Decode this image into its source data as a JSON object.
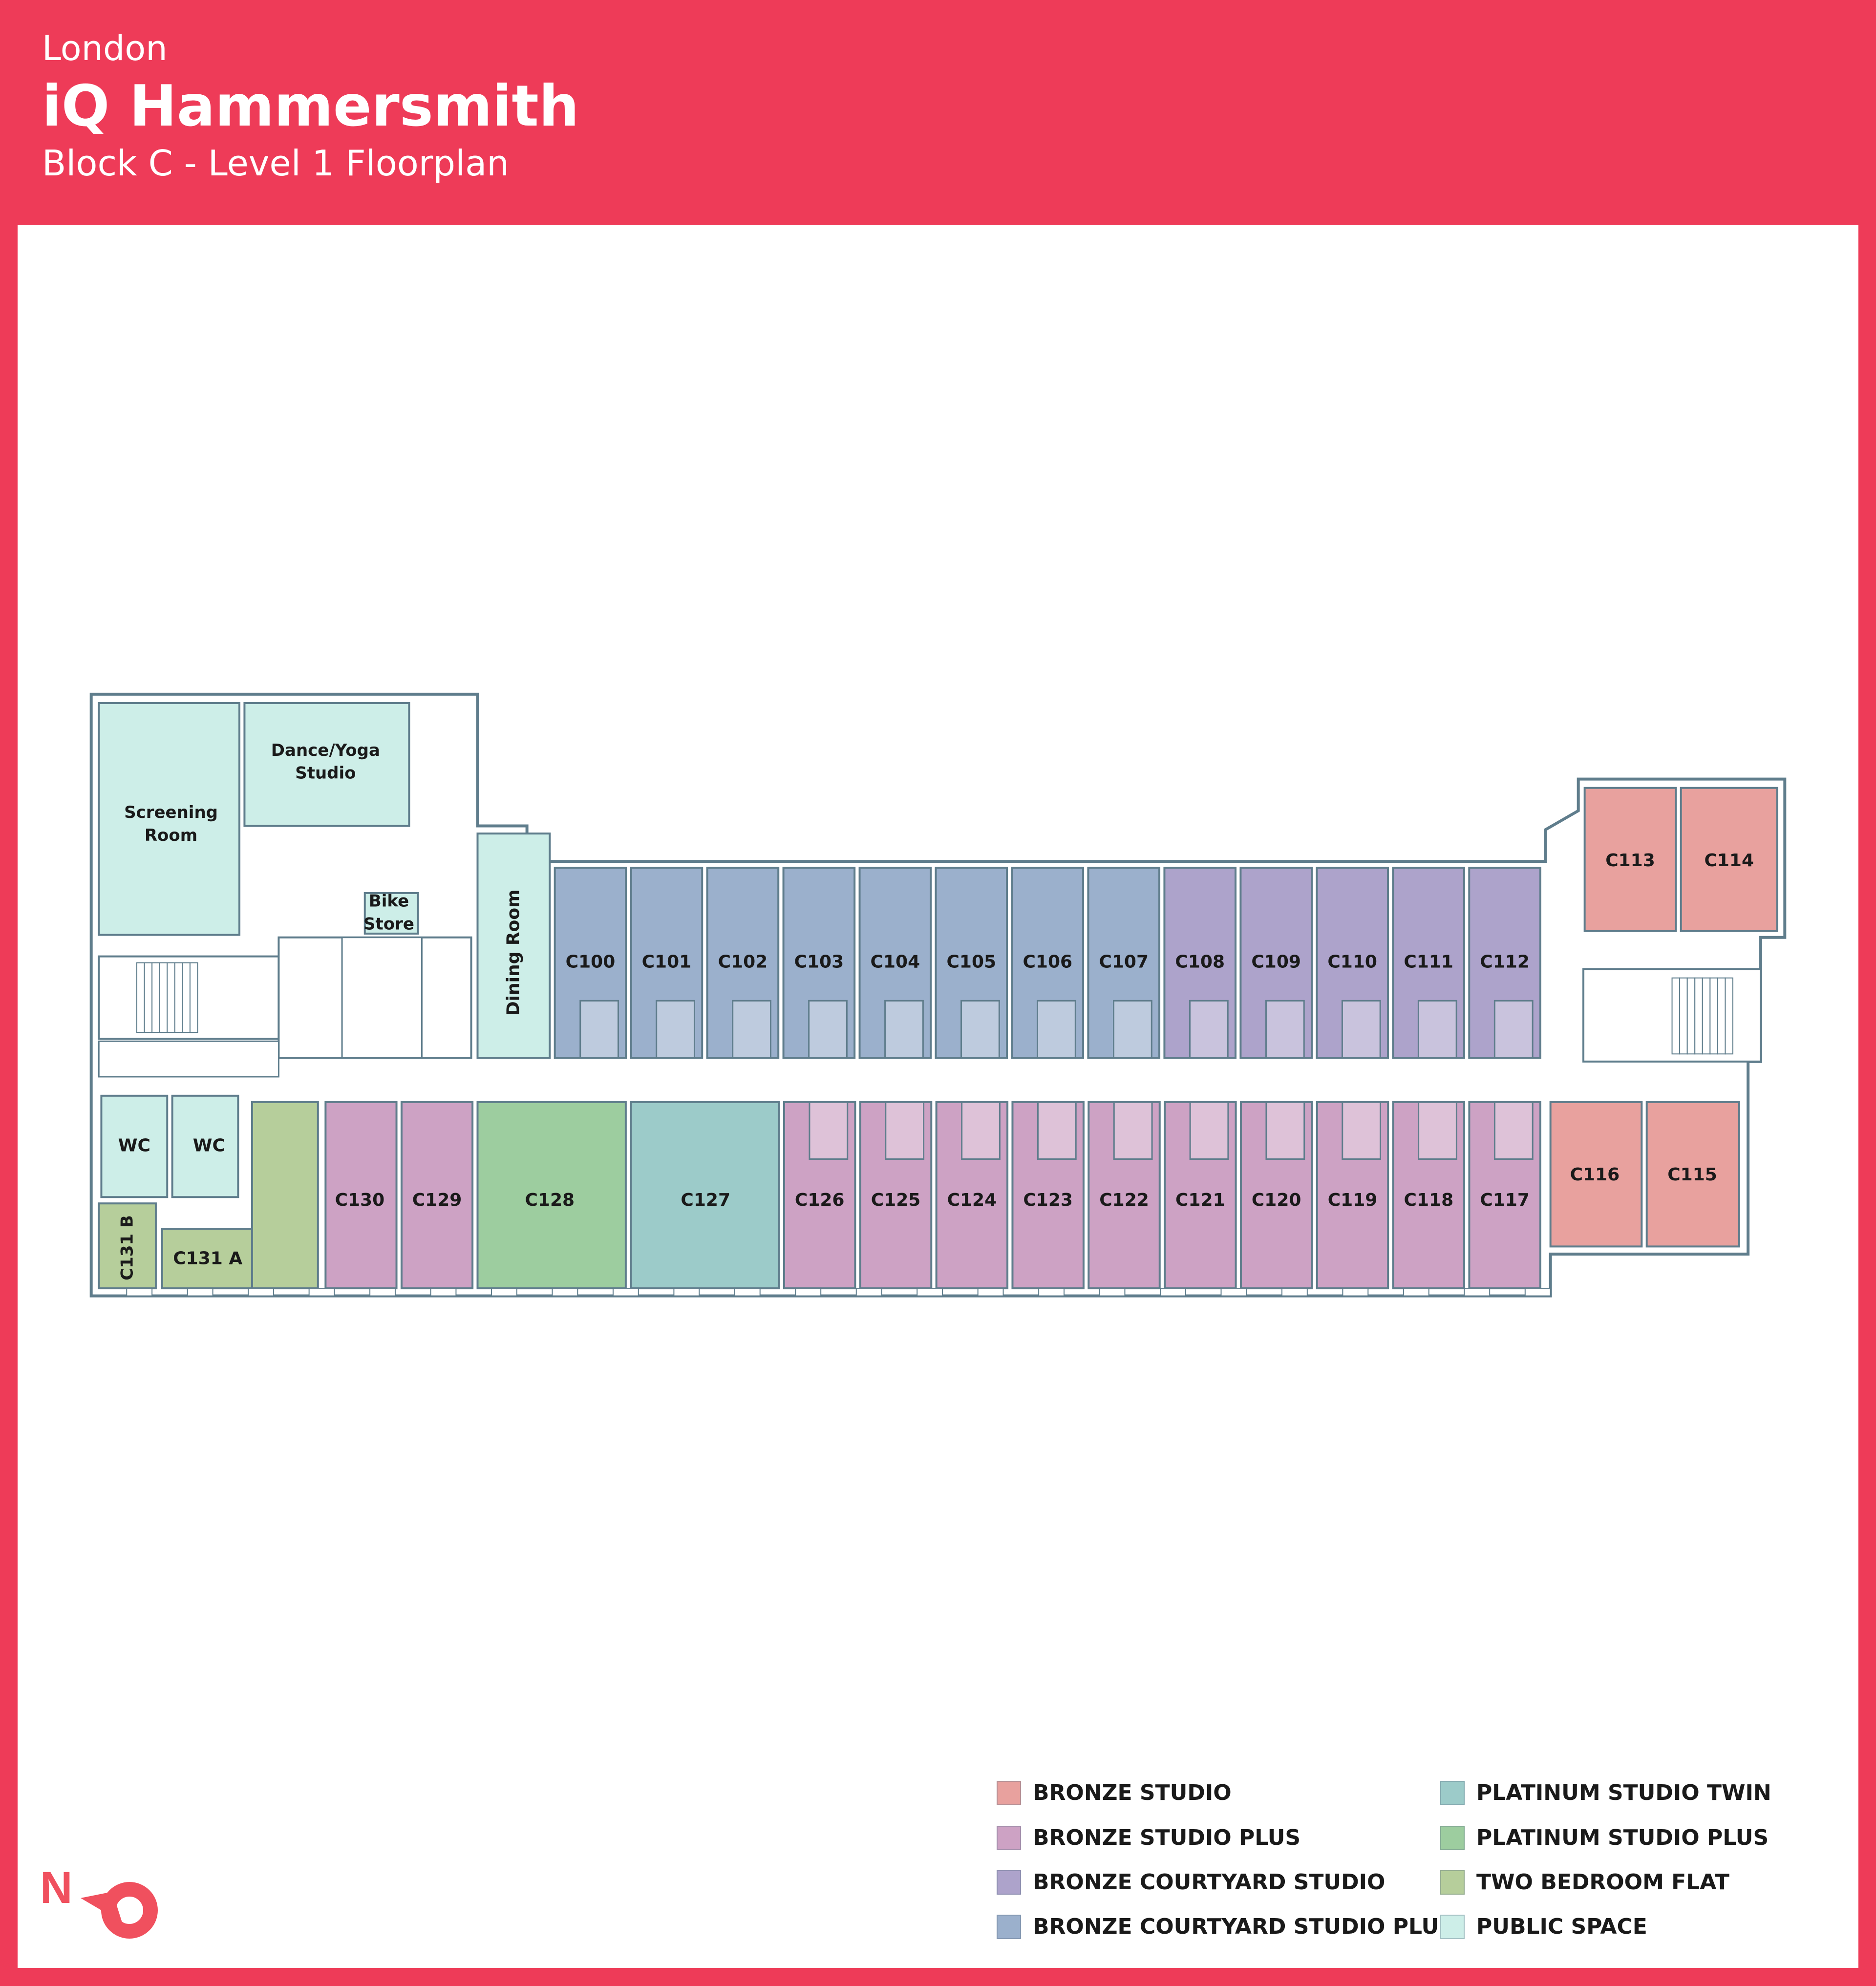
{
  "header": {
    "city": "London",
    "title": "iQ Hammersmith",
    "subtitle": "Block C - Level 1 Floorplan"
  },
  "colors": {
    "brand": "#EE3B58",
    "wall": "#5F7D8C",
    "bronze_studio": "#E8A19E",
    "bronze_studio_plus": "#CDA2C4",
    "bronze_courtyard_studio": "#ADA3CB",
    "bronze_courtyard_studio_plus": "#9BB0CC",
    "platinum_studio_twin": "#9CCBC9",
    "platinum_studio_plus": "#9DCD9F",
    "two_bedroom_flat": "#B6CE9B",
    "public_space": "#CDEEE8"
  },
  "floorplan": {
    "top_row": [
      {
        "label": "C100",
        "type": "bronze_courtyard_studio_plus"
      },
      {
        "label": "C101",
        "type": "bronze_courtyard_studio_plus"
      },
      {
        "label": "C102",
        "type": "bronze_courtyard_studio_plus"
      },
      {
        "label": "C103",
        "type": "bronze_courtyard_studio_plus"
      },
      {
        "label": "C104",
        "type": "bronze_courtyard_studio_plus"
      },
      {
        "label": "C105",
        "type": "bronze_courtyard_studio_plus"
      },
      {
        "label": "C106",
        "type": "bronze_courtyard_studio_plus"
      },
      {
        "label": "C107",
        "type": "bronze_courtyard_studio_plus"
      },
      {
        "label": "C108",
        "type": "bronze_courtyard_studio"
      },
      {
        "label": "C109",
        "type": "bronze_courtyard_studio"
      },
      {
        "label": "C110",
        "type": "bronze_courtyard_studio"
      },
      {
        "label": "C111",
        "type": "bronze_courtyard_studio"
      },
      {
        "label": "C112",
        "type": "bronze_courtyard_studio"
      }
    ],
    "bottom_row": [
      {
        "label": "C126",
        "type": "bronze_studio_plus"
      },
      {
        "label": "C125",
        "type": "bronze_studio_plus"
      },
      {
        "label": "C124",
        "type": "bronze_studio_plus"
      },
      {
        "label": "C123",
        "type": "bronze_studio_plus"
      },
      {
        "label": "C122",
        "type": "bronze_studio_plus"
      },
      {
        "label": "C121",
        "type": "bronze_studio_plus"
      },
      {
        "label": "C120",
        "type": "bronze_studio_plus"
      },
      {
        "label": "C119",
        "type": "bronze_studio_plus"
      },
      {
        "label": "C118",
        "type": "bronze_studio_plus"
      },
      {
        "label": "C117",
        "type": "bronze_studio_plus"
      }
    ],
    "other_rooms": [
      {
        "id": "c130",
        "label": "C130",
        "type": "bronze_studio_plus"
      },
      {
        "id": "c129",
        "label": "C129",
        "type": "bronze_studio_plus"
      },
      {
        "id": "c128",
        "label": "C128",
        "type": "platinum_studio_plus"
      },
      {
        "id": "c127",
        "label": "C127",
        "type": "platinum_studio_twin"
      },
      {
        "id": "c113",
        "label": "C113",
        "type": "bronze_studio"
      },
      {
        "id": "c114",
        "label": "C114",
        "type": "bronze_studio"
      },
      {
        "id": "c116",
        "label": "C116",
        "type": "bronze_studio"
      },
      {
        "id": "c115",
        "label": "C115",
        "type": "bronze_studio"
      },
      {
        "id": "c131b",
        "label": "C131 B",
        "type": "two_bedroom_flat"
      },
      {
        "id": "c131a",
        "label": "C131 A",
        "type": "two_bedroom_flat"
      },
      {
        "id": "c131hall",
        "label": "",
        "type": "two_bedroom_flat"
      },
      {
        "id": "screening",
        "label": "Screening Room",
        "type": "public_space"
      },
      {
        "id": "dance",
        "label": "Dance/Yoga Studio",
        "type": "public_space"
      },
      {
        "id": "dining",
        "label": "Dining Room",
        "type": "public_space"
      },
      {
        "id": "bike",
        "label": "Bike Store",
        "type": "public_space"
      },
      {
        "id": "wc1",
        "label": "WC",
        "type": "public_space"
      },
      {
        "id": "wc2",
        "label": "WC",
        "type": "public_space"
      }
    ]
  },
  "legend": [
    {
      "label": "BRONZE STUDIO",
      "color": "#E8A19E"
    },
    {
      "label": "BRONZE STUDIO PLUS",
      "color": "#CDA2C4"
    },
    {
      "label": "BRONZE COURTYARD STUDIO",
      "color": "#ADA3CB"
    },
    {
      "label": "BRONZE COURTYARD STUDIO PLUS",
      "color": "#9BB0CC"
    },
    {
      "label": "PLATINUM STUDIO TWIN",
      "color": "#9CCBC9"
    },
    {
      "label": "PLATINUM STUDIO PLUS",
      "color": "#9DCD9F"
    },
    {
      "label": "TWO BEDROOM FLAT",
      "color": "#B6CE9B"
    },
    {
      "label": "PUBLIC SPACE",
      "color": "#CDEEE8"
    }
  ],
  "compass": {
    "label": "N",
    "icon": "north-arrow-icon"
  }
}
